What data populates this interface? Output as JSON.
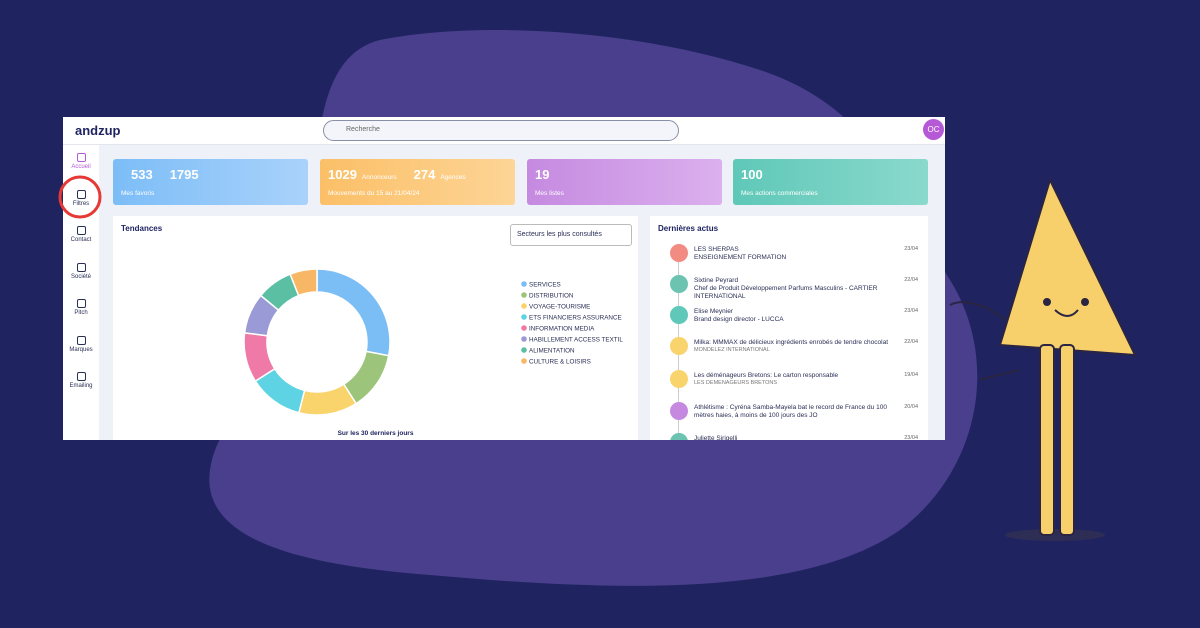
{
  "header": {
    "brand": "andzup",
    "search_placeholder": "Recherche",
    "avatar": "OC"
  },
  "sidebar": [
    "Accueil",
    "Filtres",
    "Contact",
    "Société",
    "Pitch",
    "Marques",
    "Emailing"
  ],
  "stats": [
    {
      "value": "533",
      "value2": "1795",
      "label": "Mes favoris"
    },
    {
      "value": "1029",
      "value_label": "Annonceurs",
      "value2": "274",
      "value2_label": "Agences",
      "label": "Mouvements du 15 au 21/04/24"
    },
    {
      "value": "19",
      "label": "Mes listes"
    },
    {
      "value": "100",
      "label": "Mes actions commerciales"
    }
  ],
  "trends": {
    "title": "Tendances",
    "dropdown": "Secteurs les plus consultés",
    "footer": "Sur les 30 derniers jours",
    "chart_data": {
      "type": "pie",
      "categories": [
        "SERVICES",
        "DISTRIBUTION",
        "VOYAGE-TOURISME",
        "ETS FINANCIERS ASSURANCE",
        "INFORMATION MEDIA",
        "HABILLEMENT ACCESS TEXTIL",
        "ALIMENTATION",
        "CULTURE & LOISIRS"
      ],
      "values": [
        28,
        13,
        13,
        12,
        11,
        9,
        8,
        6
      ],
      "colors": [
        "#7bbdf5",
        "#9cc47a",
        "#f9d36b",
        "#5dd3e3",
        "#ef7aa8",
        "#9a9ad6",
        "#5bbfa3",
        "#f8b765"
      ]
    }
  },
  "news": {
    "title": "Dernières actus",
    "items": [
      {
        "title": "LES SHERPAS",
        "subtitle": "ENSEIGNEMENT FORMATION",
        "date": "23/04"
      },
      {
        "title": "Sixtine Peyrard",
        "subtitle": "Chef de Produit Développement Parfums Masculins - CARTIER INTERNATIONAL",
        "date": "22/04"
      },
      {
        "title": "Elise Meynier",
        "subtitle": "Brand design director - LUCCA",
        "date": "23/04"
      },
      {
        "title": "Milka: MMMAX de délicieux ingrédients enrobés de tendre chocolat",
        "subtitle": "MONDELEZ INTERNATIONAL",
        "date": "22/04"
      },
      {
        "title": "Les déménageurs Bretons: Le carton responsable",
        "subtitle": "LES DEMENAGEURS BRETONS",
        "date": "19/04"
      },
      {
        "title": "Athlétisme : Cyréna Samba-Mayela bat le record de France du 100 mètres haies, à moins de 100 jours des JO",
        "date": "20/04"
      },
      {
        "title": "Juliette Sirigelli",
        "date": "23/04"
      }
    ]
  }
}
